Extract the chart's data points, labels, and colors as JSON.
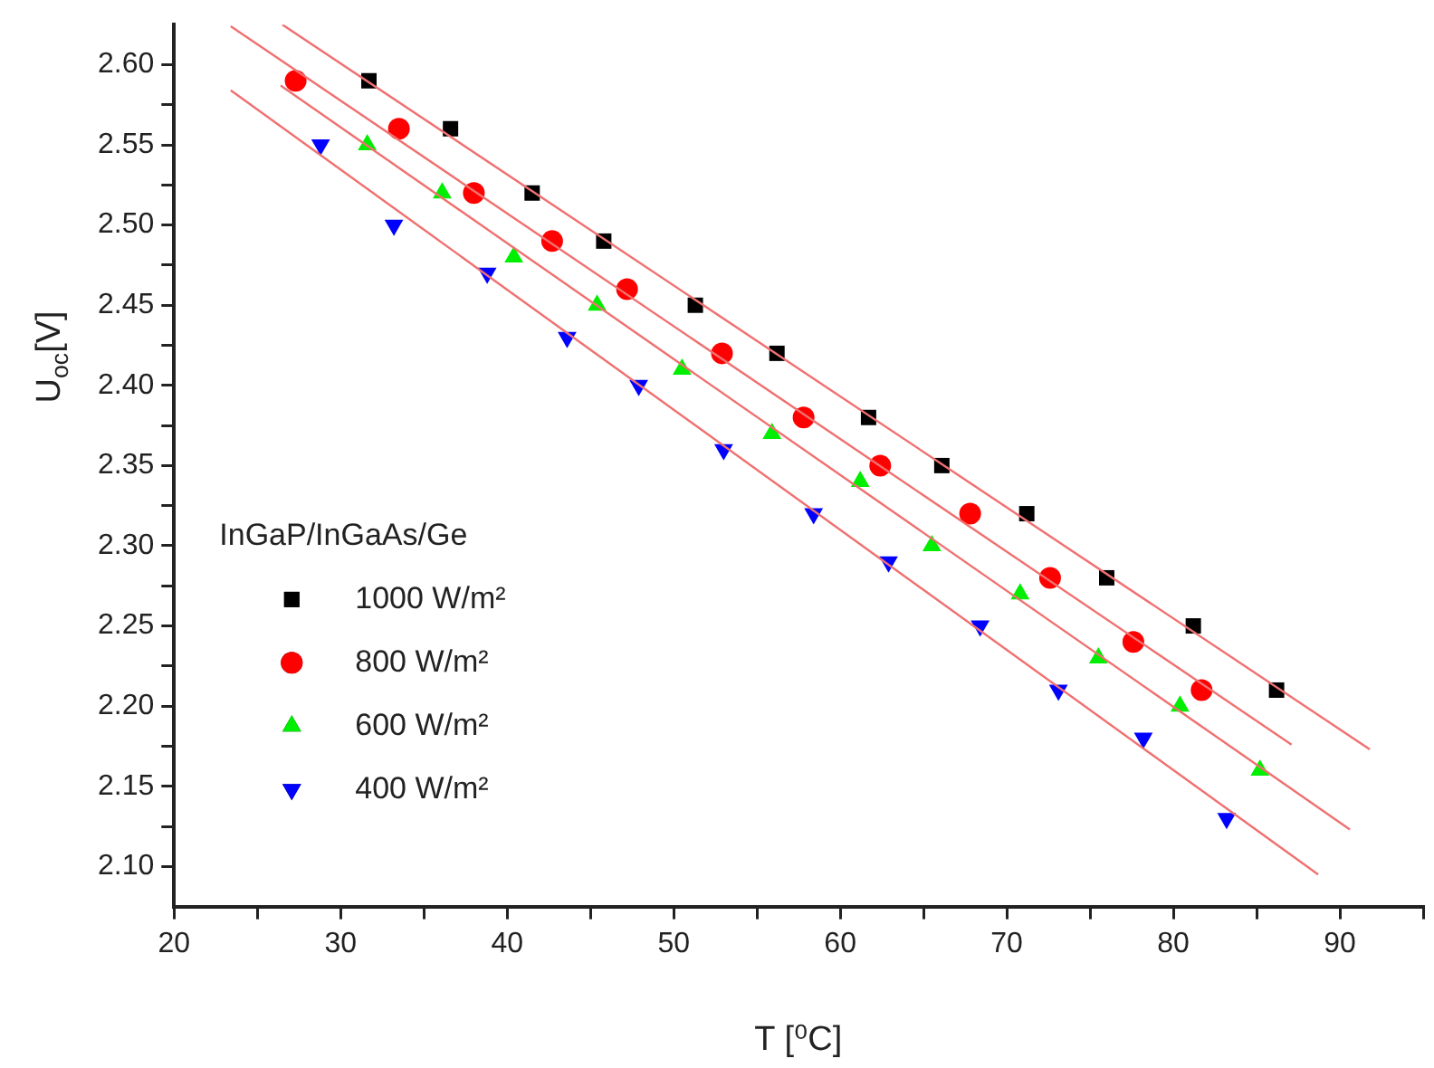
{
  "chart_data": {
    "type": "scatter",
    "xlabel": "T [⁰C]",
    "ylabel": "U$_{oc}$[V]",
    "legend_title": "InGaP/InGaAs/Ge",
    "legend": "left",
    "grid": false,
    "xlim": [
      20,
      95
    ],
    "xticks": [
      20,
      {
        "value": 25,
        "label": null
      },
      30,
      {
        "value": 35,
        "label": null
      },
      40,
      {
        "value": 45,
        "label": null
      },
      50,
      {
        "value": 55,
        "label": null
      },
      60,
      {
        "value": 65,
        "label": null
      },
      70,
      {
        "value": 75,
        "label": null
      },
      80,
      {
        "value": 85,
        "label": null
      },
      90,
      {
        "value": 95,
        "label": null
      }
    ],
    "ylim": [
      2.075,
      2.625
    ],
    "yticks": [
      {
        "value": 2.1,
        "label": "2.10"
      },
      {
        "value": 2.125,
        "label": null
      },
      2.15,
      {
        "value": 2.175,
        "label": null
      },
      {
        "value": 2.2,
        "label": "2.20"
      },
      {
        "value": 2.225,
        "label": null
      },
      2.25,
      {
        "value": 2.275,
        "label": null
      },
      {
        "value": 2.3,
        "label": "2.30"
      },
      {
        "value": 2.325,
        "label": null
      },
      2.35,
      {
        "value": 2.375,
        "label": null
      },
      {
        "value": 2.4,
        "label": "2.40"
      },
      {
        "value": 2.425,
        "label": null
      },
      2.45,
      {
        "value": 2.475,
        "label": null
      },
      {
        "value": 2.5,
        "label": "2.50"
      },
      {
        "value": 2.525,
        "label": null
      },
      2.55,
      {
        "value": 2.575,
        "label": null
      },
      {
        "value": 2.6,
        "label": "2.60"
      }
    ],
    "series": [
      {
        "type": "line",
        "color": "#f07070",
        "marker": "none",
        "x": [
          26.5,
          91.8
        ],
        "values": [
          2.625,
          2.173
        ]
      },
      {
        "type": "line",
        "color": "#f07070",
        "marker": "none",
        "x": [
          23.4,
          87.1
        ],
        "values": [
          2.624,
          2.176
        ]
      },
      {
        "type": "line",
        "color": "#f07070",
        "marker": "none",
        "x": [
          26.4,
          90.6
        ],
        "values": [
          2.587,
          2.123
        ]
      },
      {
        "type": "line",
        "color": "#f07070",
        "marker": "none",
        "x": [
          23.4,
          88.7
        ],
        "values": [
          2.584,
          2.095
        ]
      },
      {
        "name": "1000 W/m²",
        "color": "#000000",
        "marker": "square",
        "x": [
          31.7,
          36.6,
          41.5,
          45.8,
          51.3,
          56.2,
          61.7,
          66.1,
          71.2,
          76.0,
          81.2,
          86.2
        ],
        "values": [
          2.59,
          2.56,
          2.52,
          2.49,
          2.45,
          2.42,
          2.38,
          2.35,
          2.32,
          2.28,
          2.25,
          2.21
        ]
      },
      {
        "name": "800 W/m²",
        "color": "#ff0000",
        "marker": "circle",
        "x": [
          27.3,
          33.5,
          38.0,
          42.7,
          47.2,
          52.9,
          57.8,
          62.4,
          67.8,
          72.6,
          77.6,
          81.7
        ],
        "values": [
          2.59,
          2.56,
          2.52,
          2.49,
          2.46,
          2.42,
          2.38,
          2.35,
          2.32,
          2.28,
          2.24,
          2.21
        ]
      },
      {
        "name": "600 W/m²",
        "color": "#00ee00",
        "marker": "triangle",
        "x": [
          31.6,
          36.1,
          40.4,
          45.4,
          50.5,
          55.9,
          61.2,
          65.5,
          70.8,
          75.5,
          80.4,
          85.2
        ],
        "values": [
          2.55,
          2.52,
          2.48,
          2.45,
          2.41,
          2.37,
          2.34,
          2.3,
          2.27,
          2.23,
          2.2,
          2.16
        ]
      },
      {
        "name": "400 W/m²",
        "color": "#0000ff",
        "marker": "triangle_down",
        "x": [
          28.8,
          33.2,
          38.8,
          43.6,
          47.9,
          53.0,
          58.4,
          62.9,
          68.4,
          73.1,
          78.2,
          83.2
        ],
        "values": [
          2.55,
          2.5,
          2.47,
          2.43,
          2.4,
          2.36,
          2.32,
          2.29,
          2.25,
          2.21,
          2.18,
          2.13
        ]
      }
    ]
  }
}
